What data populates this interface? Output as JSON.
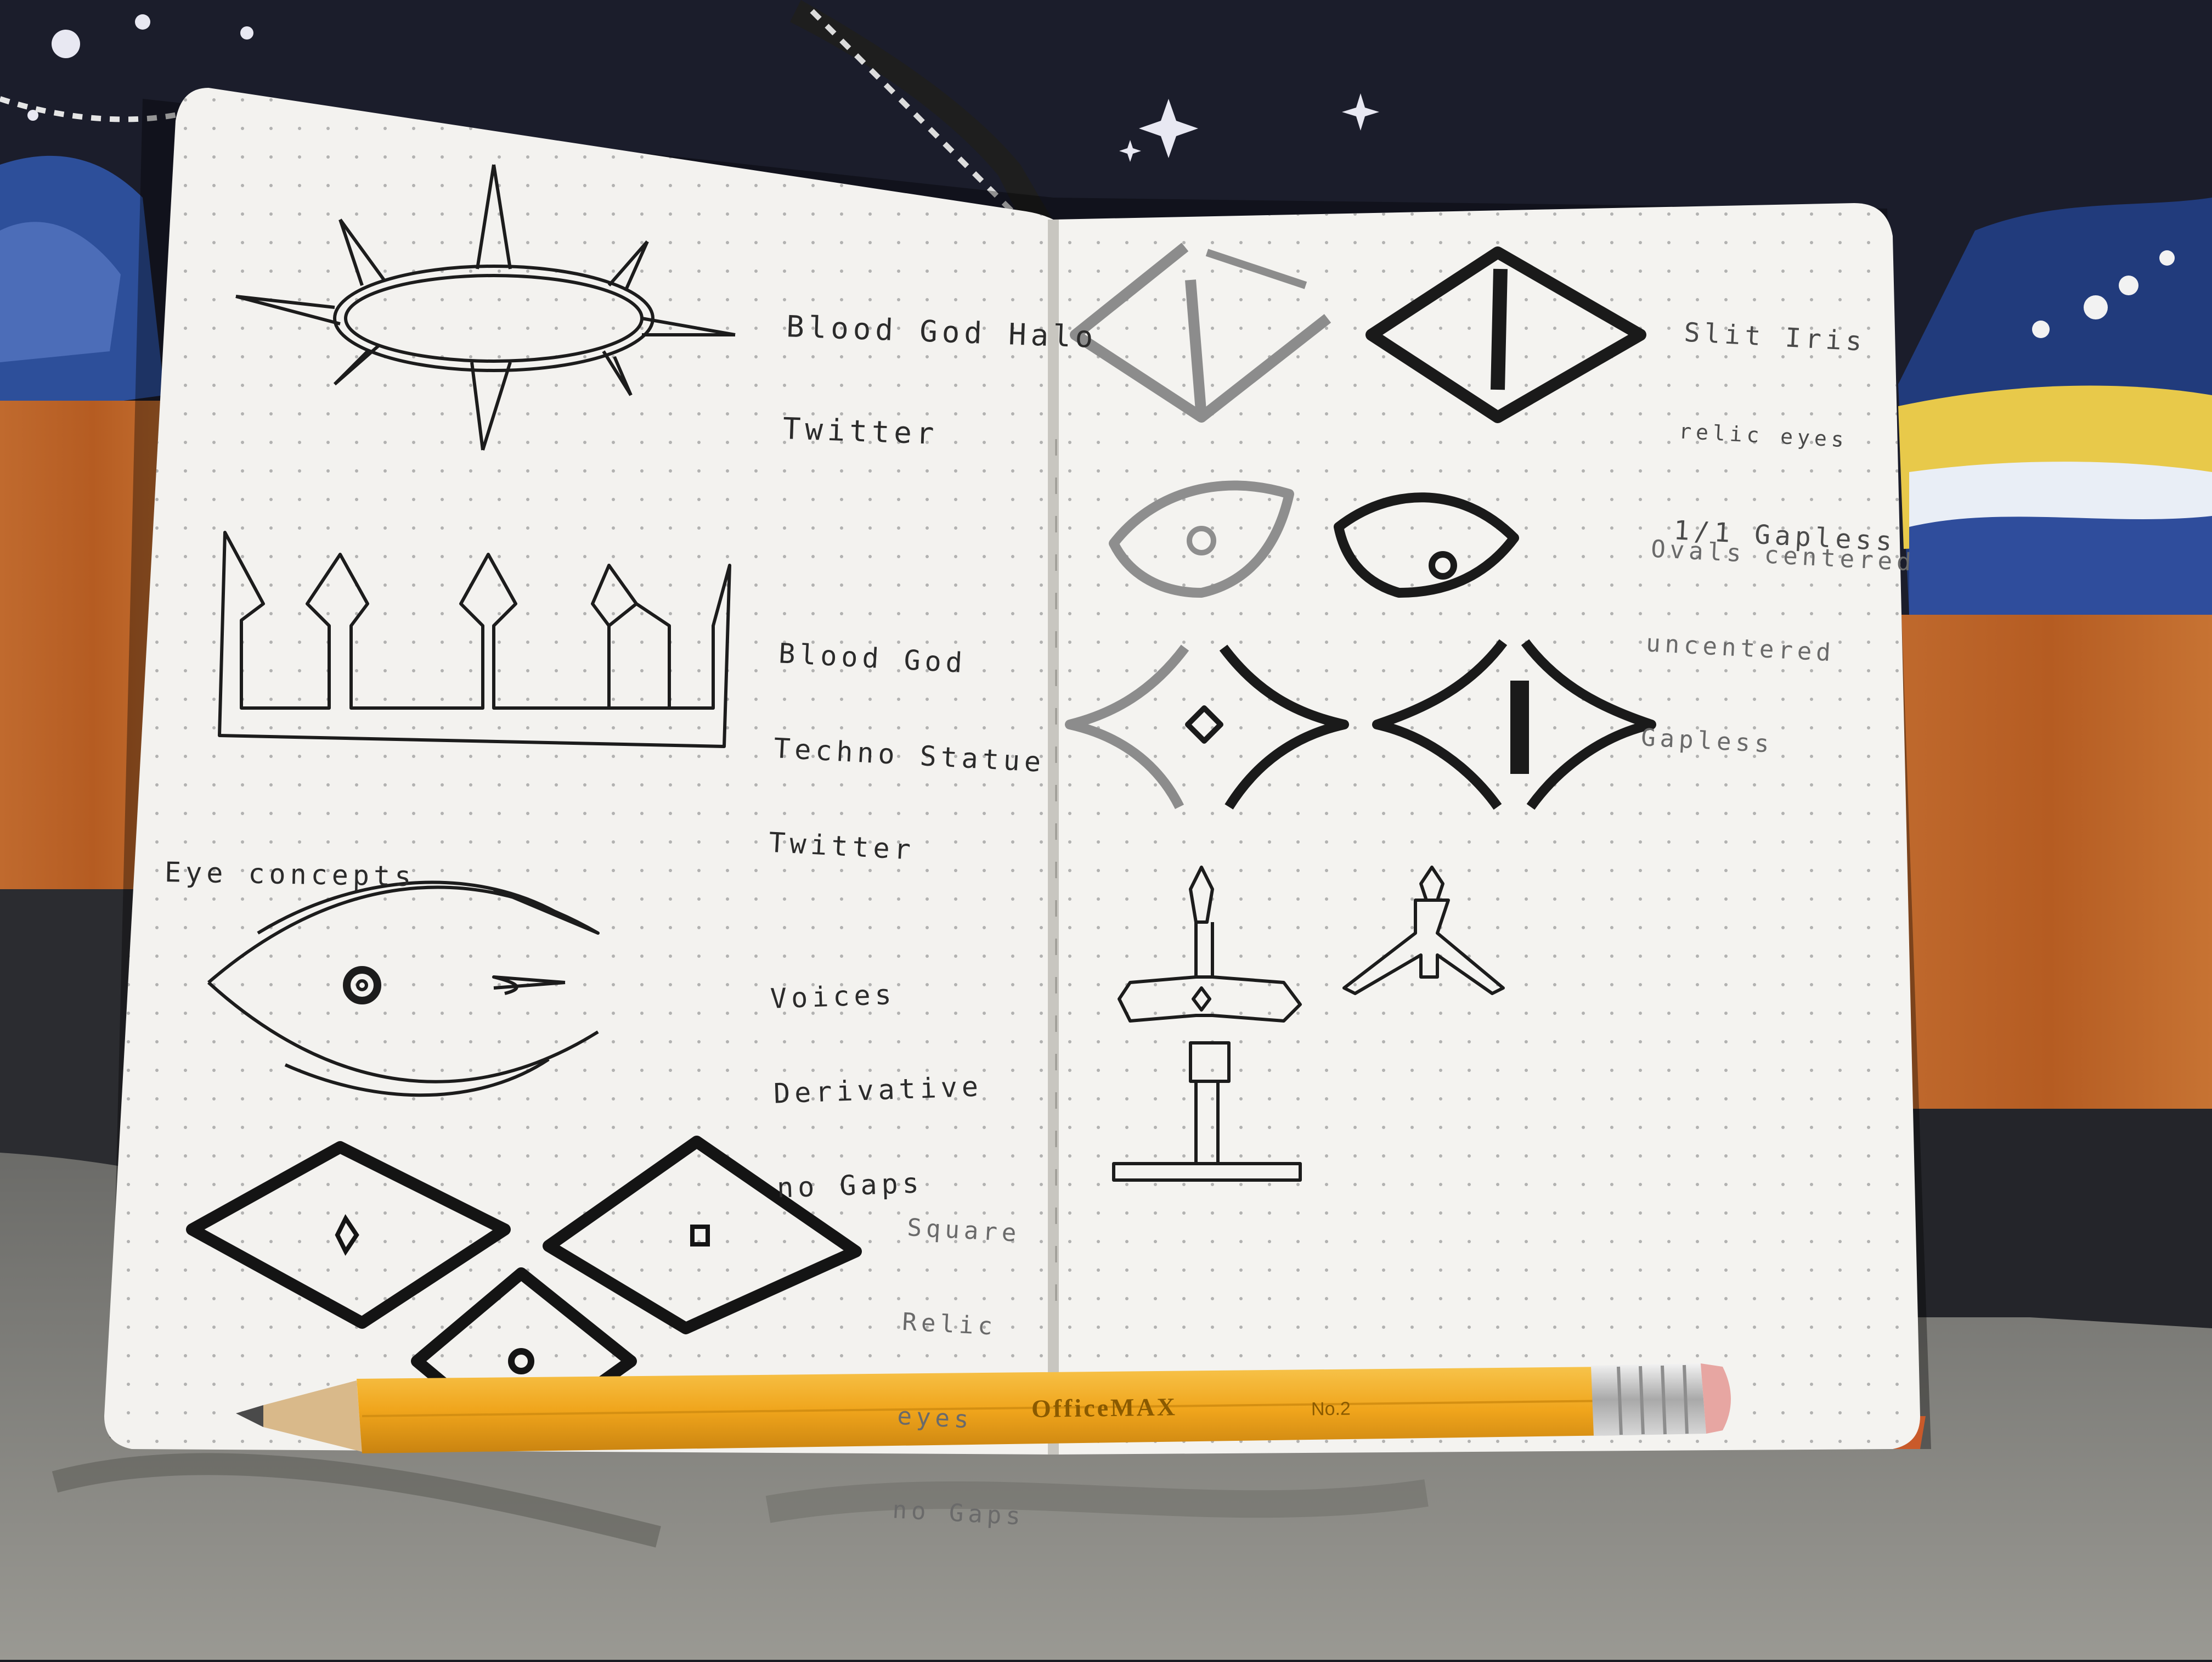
{
  "left_page": {
    "notes": [
      {
        "id": "halo",
        "lines": [
          "Blood God Halo",
          "Twitter"
        ]
      },
      {
        "id": "crown",
        "lines": [
          "Blood God",
          "Techno Statue",
          "Twitter"
        ]
      },
      {
        "id": "eye-heading",
        "lines": [
          "Eye concepts"
        ]
      },
      {
        "id": "voices",
        "lines": [
          "Voices",
          "Derivative",
          "no Gaps"
        ]
      },
      {
        "id": "square",
        "lines": [
          "Square",
          "Relic",
          "eyes",
          "no Gaps"
        ]
      }
    ]
  },
  "right_page": {
    "notes": [
      {
        "id": "slit",
        "lines": [
          "Slit Iris",
          "relic eyes",
          "1/1 Gapless"
        ]
      },
      {
        "id": "ovals",
        "lines": [
          "Ovals centered",
          "uncentered",
          "Gapless"
        ]
      }
    ]
  },
  "pencil": {
    "brand": "OfficeMAX",
    "grade": "No.2",
    "color": "#f0a91c"
  },
  "colors": {
    "paper": "#f3f2ef",
    "ink": "#1c1c1c",
    "background": "#1a1b22",
    "wood": "#b8642c"
  }
}
